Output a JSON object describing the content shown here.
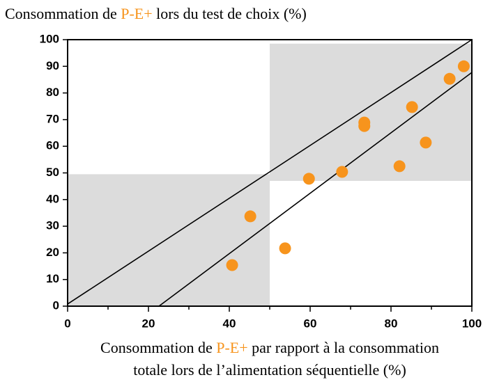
{
  "chart_data": {
    "type": "scatter",
    "title": [
      "Consommation de ",
      "P-E+",
      " lors du test de choix (%)"
    ],
    "xlabel": [
      [
        "Consommation de ",
        "P-E+",
        " par rapport à la consommation"
      ],
      [
        "totale lors de l’alimentation séquentielle (%)"
      ]
    ],
    "highlight_color": "#f7941d",
    "x": [
      40.7,
      45.2,
      53.8,
      59.7,
      67.9,
      73.4,
      73.4,
      82.1,
      85.2,
      88.6,
      94.5,
      98.0
    ],
    "values": [
      15.4,
      33.7,
      21.7,
      47.8,
      50.4,
      68.9,
      67.6,
      52.5,
      74.7,
      61.4,
      85.3,
      90.0
    ],
    "color": "#f7941d",
    "regions": [
      {
        "x": [
          0,
          50
        ],
        "y": [
          0,
          49.5
        ]
      },
      {
        "x": [
          50,
          100
        ],
        "y": [
          47,
          98.5
        ]
      }
    ],
    "region_color": "#dcdcdc",
    "lines": [
      {
        "x": [
          0,
          100
        ],
        "y": [
          0.8,
          100
        ]
      },
      {
        "x": [
          22.6,
          100
        ],
        "y": [
          0,
          87.7
        ]
      }
    ],
    "xlim": [
      0,
      100
    ],
    "ylim": [
      0,
      100
    ],
    "xticks": [
      0,
      20,
      40,
      60,
      80,
      100
    ],
    "xminor": [
      10,
      30,
      50,
      70,
      90
    ],
    "yticks": [
      0,
      10,
      20,
      30,
      40,
      50,
      60,
      70,
      80,
      90,
      100
    ]
  }
}
